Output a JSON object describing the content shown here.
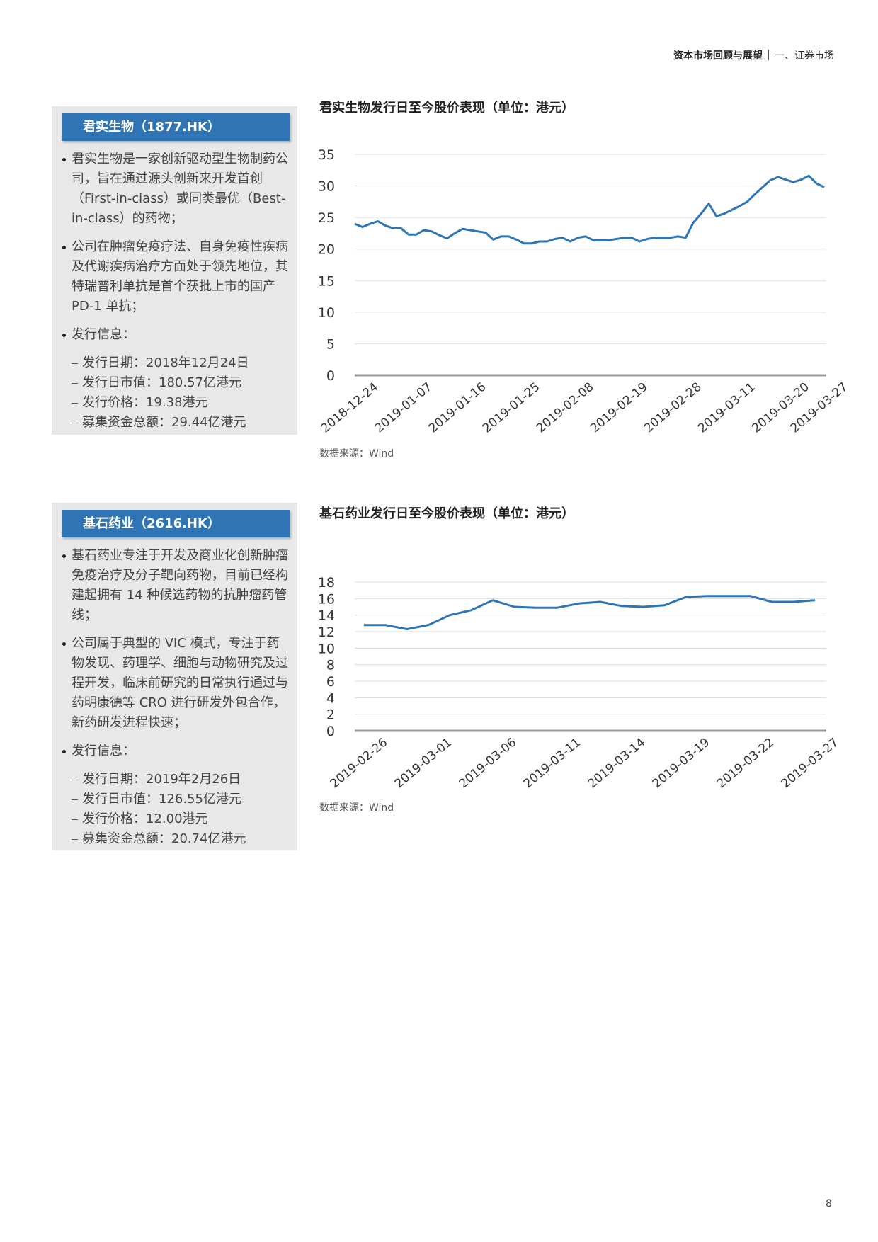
{
  "header": {
    "title": "资本市场回顾与展望",
    "section": "一、证券市场"
  },
  "companies": [
    {
      "name": "君实生物（1877.HK）",
      "bullets": [
        "君实生物是一家创新驱动型生物制药公司，旨在通过源头创新来开发首创（First-in-class）或同类最优（Best-in-class）的药物；",
        "公司在肿瘤免疫疗法、自身免疫性疾病及代谢疾病治疗方面处于领先地位，其特瑞普利单抗是首个获批上市的国产 PD-1 单抗；"
      ],
      "info_title": "发行信息：",
      "info": [
        "发行日期：2018年12月24日",
        "发行日市值：180.57亿港元",
        "发行价格：19.38港元",
        "募集资金总额：29.44亿港元"
      ]
    },
    {
      "name": "基石药业（2616.HK）",
      "bullets": [
        "基石药业专注于开发及商业化创新肿瘤免疫治疗及分子靶向药物，目前已经构建起拥有 14 种候选药物的抗肿瘤药管线；",
        "公司属于典型的 VIC 模式，专注于药物发现、药理学、细胞与动物研究及过程开发，临床前研究的日常执行通过与药明康德等 CRO 进行研发外包合作，新药研发进程快速；"
      ],
      "info_title": "发行信息：",
      "info": [
        "发行日期：2019年2月26日",
        "发行日市值：126.55亿港元",
        "发行价格：12.00港元",
        "募集资金总额：20.74亿港元"
      ]
    }
  ],
  "chart_data": [
    {
      "type": "line",
      "title": "君实生物发行日至今股价表现（单位：港元）",
      "categories": [
        "2018-12-24",
        null,
        null,
        null,
        null,
        null,
        null,
        "2019-01-07",
        null,
        null,
        null,
        null,
        null,
        null,
        "2019-01-16",
        null,
        null,
        null,
        null,
        null,
        null,
        "2019-01-25",
        null,
        null,
        null,
        null,
        null,
        null,
        "2019-02-08",
        null,
        null,
        null,
        null,
        null,
        null,
        "2019-02-19",
        null,
        null,
        null,
        null,
        null,
        null,
        "2019-02-28",
        null,
        null,
        null,
        null,
        null,
        null,
        "2019-03-11",
        null,
        null,
        null,
        null,
        null,
        null,
        "2019-03-20",
        null,
        null,
        null,
        null,
        "2019-03-27"
      ],
      "series": [
        {
          "name": "君实生物",
          "color": "#2e75b6",
          "values": [
            24,
            23.5,
            24,
            24.4,
            23.7,
            23.3,
            23.3,
            22.3,
            22.3,
            23,
            22.8,
            22.2,
            21.7,
            22.5,
            23.2,
            23,
            22.8,
            22.6,
            21.5,
            22,
            22,
            21.5,
            20.9,
            20.9,
            21.2,
            21.2,
            21.6,
            21.8,
            21.2,
            21.8,
            22,
            21.4,
            21.4,
            21.4,
            21.6,
            21.8,
            21.8,
            21.2,
            21.6,
            21.8,
            21.8,
            21.8,
            22,
            21.8,
            24.2,
            25.6,
            27.2,
            25.2,
            25.6,
            26.2,
            26.8,
            27.5,
            28.7,
            29.8,
            30.9,
            31.4,
            31,
            30.6,
            31,
            31.6,
            30.4,
            29.8
          ]
        }
      ],
      "ylim": [
        0,
        35
      ],
      "yticks": [
        0,
        5,
        10,
        15,
        20,
        25,
        30,
        35
      ],
      "grid": true,
      "source": "数据来源：Wind"
    },
    {
      "type": "line",
      "title": "基石药业发行日至今股价表现（单位：港元）",
      "categories": [
        "2019-02-26",
        null,
        null,
        "2019-03-01",
        null,
        null,
        "2019-03-06",
        null,
        null,
        "2019-03-11",
        null,
        null,
        "2019-03-14",
        null,
        null,
        "2019-03-19",
        null,
        null,
        "2019-03-22",
        null,
        null,
        "2019-03-27"
      ],
      "series": [
        {
          "name": "基石药业",
          "color": "#2e75b6",
          "values": [
            12.8,
            12.8,
            12.3,
            12.8,
            14.0,
            14.6,
            15.8,
            15.0,
            14.9,
            14.9,
            15.4,
            15.6,
            15.1,
            15.0,
            15.2,
            16.2,
            16.3,
            16.3,
            16.3,
            15.6,
            15.6,
            15.8
          ]
        }
      ],
      "ylim": [
        0,
        18
      ],
      "yticks": [
        0,
        2,
        4,
        6,
        8,
        10,
        12,
        14,
        16,
        18
      ],
      "grid": true,
      "source": "数据来源：Wind"
    }
  ],
  "page_number": "8"
}
